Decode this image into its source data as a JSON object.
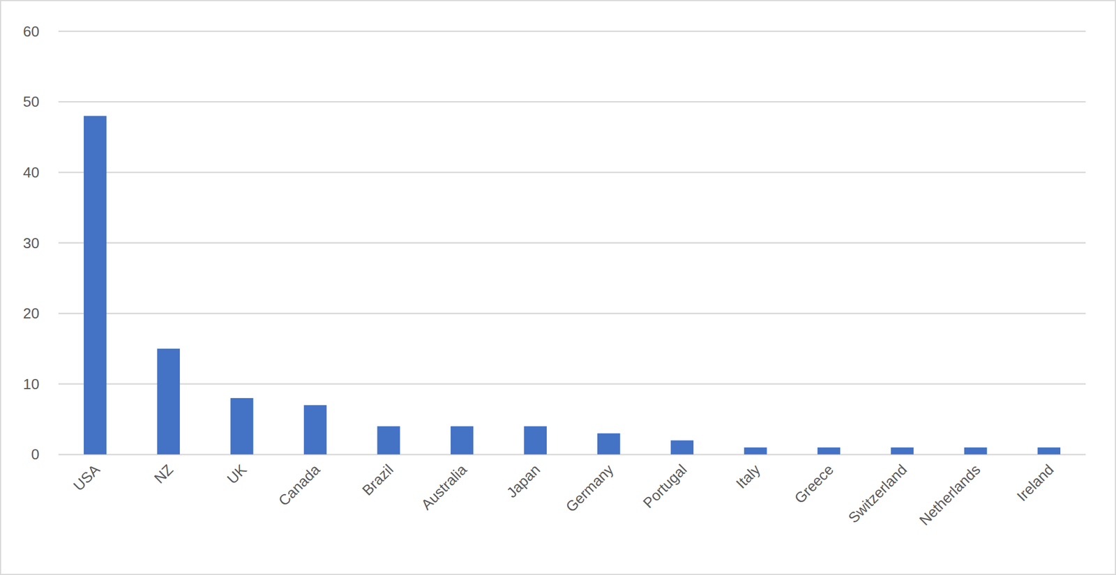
{
  "chart_data": {
    "type": "bar",
    "categories": [
      "USA",
      "NZ",
      "UK",
      "Canada",
      "Brazil",
      "Australia",
      "Japan",
      "Germany",
      "Portugal",
      "Italy",
      "Greece",
      "Switzerland",
      "Netherlands",
      "Ireland"
    ],
    "values": [
      48,
      15,
      8,
      7,
      4,
      4,
      4,
      3,
      2,
      1,
      1,
      1,
      1,
      1
    ],
    "color": "#4472c4",
    "ylim": [
      0,
      60
    ],
    "yticks": [
      0,
      10,
      20,
      30,
      40,
      50,
      60
    ],
    "grid": true
  }
}
